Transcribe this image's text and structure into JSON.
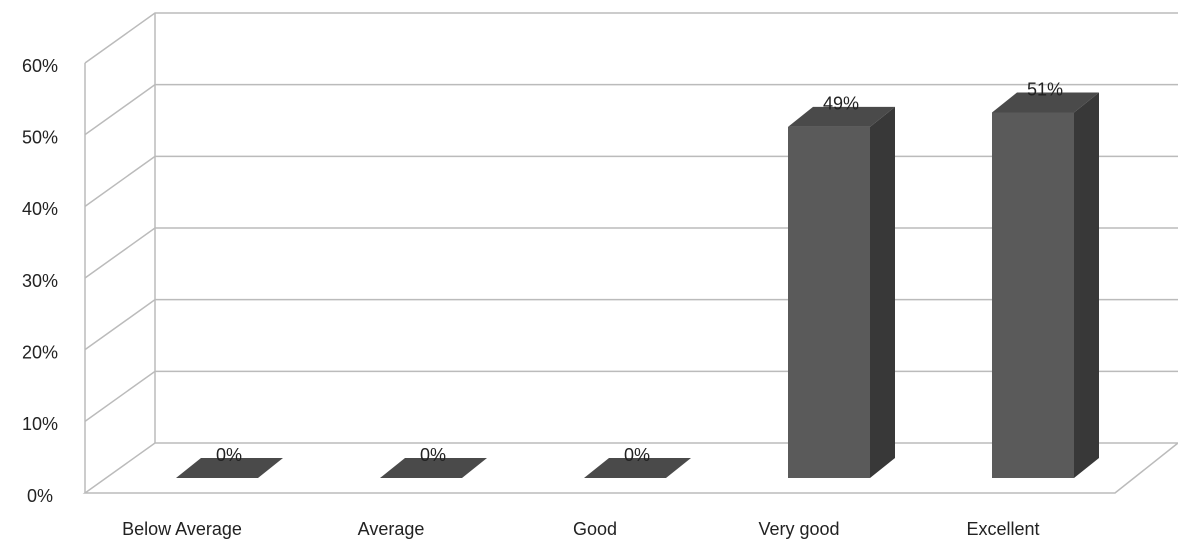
{
  "chart_data": {
    "type": "bar",
    "categories": [
      "Below Average",
      "Average",
      "Good",
      "Very good",
      "Excellent"
    ],
    "values": [
      0,
      0,
      0,
      49,
      51
    ],
    "value_labels": [
      "0%",
      "0%",
      "0%",
      "49%",
      "51%"
    ],
    "color": "#5a5a5a",
    "ylim": [
      0,
      60
    ],
    "yticks": [
      {
        "value": 0,
        "label": "0%"
      },
      {
        "value": 10,
        "label": "10%"
      },
      {
        "value": 20,
        "label": "20%"
      },
      {
        "value": 30,
        "label": "30%"
      },
      {
        "value": 40,
        "label": "40%"
      },
      {
        "value": 50,
        "label": "50%"
      },
      {
        "value": 60,
        "label": "60%"
      }
    ],
    "grid": true
  }
}
